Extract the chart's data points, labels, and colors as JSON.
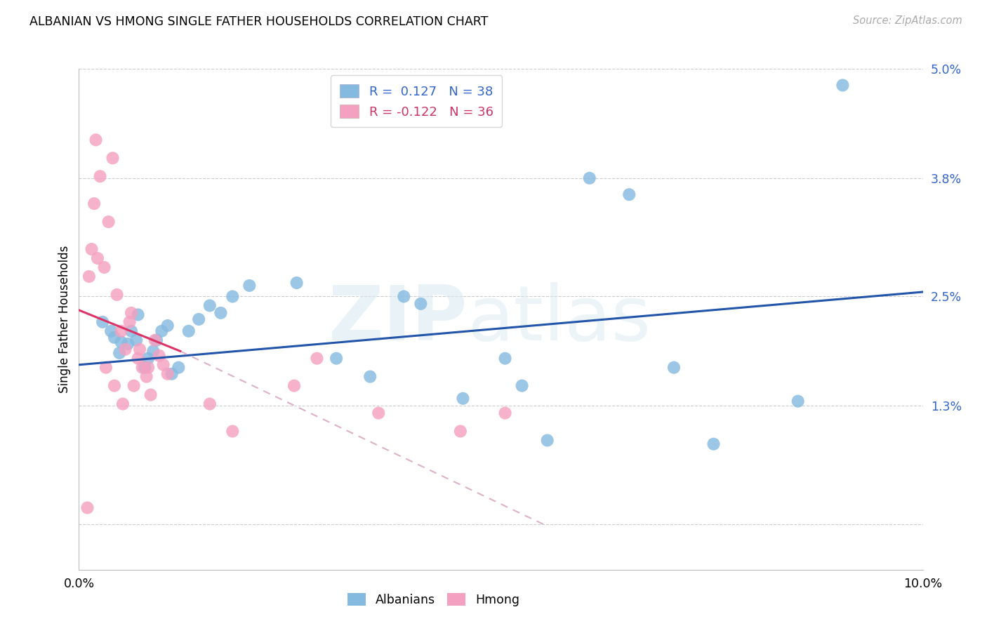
{
  "title": "ALBANIAN VS HMONG SINGLE FATHER HOUSEHOLDS CORRELATION CHART",
  "source": "Source: ZipAtlas.com",
  "ylabel": "Single Father Households",
  "color_albanian": "#85bae0",
  "color_hmong": "#f4a0c0",
  "line_color_albanian": "#2255aa",
  "line_color_hmong_solid": "#dd3366",
  "line_color_hmong_dash": "#ddb0c8",
  "watermark_zip": "ZIP",
  "watermark_atlas": "atlas",
  "xlim": [
    0.0,
    10.0
  ],
  "ylim": [
    -0.5,
    5.0
  ],
  "yticks": [
    0.0,
    1.3,
    2.5,
    3.8,
    5.0
  ],
  "ytick_labels": [
    "",
    "1.3%",
    "2.5%",
    "3.8%",
    "5.0%"
  ],
  "xticks": [
    0.0,
    2.5,
    5.0,
    7.5,
    10.0
  ],
  "xtick_labels": [
    "0.0%",
    "",
    "",
    "",
    "10.0%"
  ],
  "alb_line": [
    0.0,
    1.75,
    10.0,
    2.55
  ],
  "hmo_solid": [
    0.0,
    2.35,
    1.2,
    1.9
  ],
  "hmo_dash": [
    1.2,
    1.9,
    5.5,
    0.0
  ],
  "albanian_x": [
    0.28,
    0.42,
    0.5,
    0.62,
    0.7,
    0.82,
    0.92,
    1.05,
    1.18,
    1.3,
    1.55,
    1.82,
    2.02,
    2.58,
    3.05,
    3.45,
    3.85,
    4.05,
    4.55,
    5.05,
    5.25,
    5.55,
    6.05,
    6.52,
    7.05,
    7.52,
    8.52,
    9.05,
    0.38,
    0.48,
    0.58,
    0.68,
    0.78,
    0.88,
    0.98,
    1.1,
    1.42,
    1.68
  ],
  "albanian_y": [
    2.22,
    2.05,
    2.0,
    2.12,
    2.3,
    1.82,
    2.02,
    2.18,
    1.72,
    2.12,
    2.4,
    2.5,
    2.62,
    2.65,
    1.82,
    1.62,
    2.5,
    2.42,
    1.38,
    1.82,
    1.52,
    0.92,
    3.8,
    3.62,
    1.72,
    0.88,
    1.35,
    4.82,
    2.12,
    1.88,
    1.98,
    2.02,
    1.72,
    1.9,
    2.12,
    1.65,
    2.25,
    2.32
  ],
  "hmong_x": [
    0.1,
    0.15,
    0.2,
    0.25,
    0.3,
    0.35,
    0.4,
    0.45,
    0.5,
    0.55,
    0.6,
    0.65,
    0.7,
    0.75,
    0.8,
    0.85,
    0.9,
    0.95,
    1.0,
    1.05,
    1.55,
    1.82,
    2.55,
    2.82,
    3.55,
    4.52,
    5.05,
    0.12,
    0.18,
    0.22,
    0.32,
    0.42,
    0.52,
    0.62,
    0.72,
    0.82
  ],
  "hmong_y": [
    0.18,
    3.02,
    4.22,
    3.82,
    2.82,
    3.32,
    4.02,
    2.52,
    2.12,
    1.92,
    2.22,
    1.52,
    1.82,
    1.72,
    1.62,
    1.42,
    2.02,
    1.85,
    1.75,
    1.65,
    1.32,
    1.02,
    1.52,
    1.82,
    1.22,
    1.02,
    1.22,
    2.72,
    3.52,
    2.92,
    1.72,
    1.52,
    1.32,
    2.32,
    1.92,
    1.72
  ]
}
